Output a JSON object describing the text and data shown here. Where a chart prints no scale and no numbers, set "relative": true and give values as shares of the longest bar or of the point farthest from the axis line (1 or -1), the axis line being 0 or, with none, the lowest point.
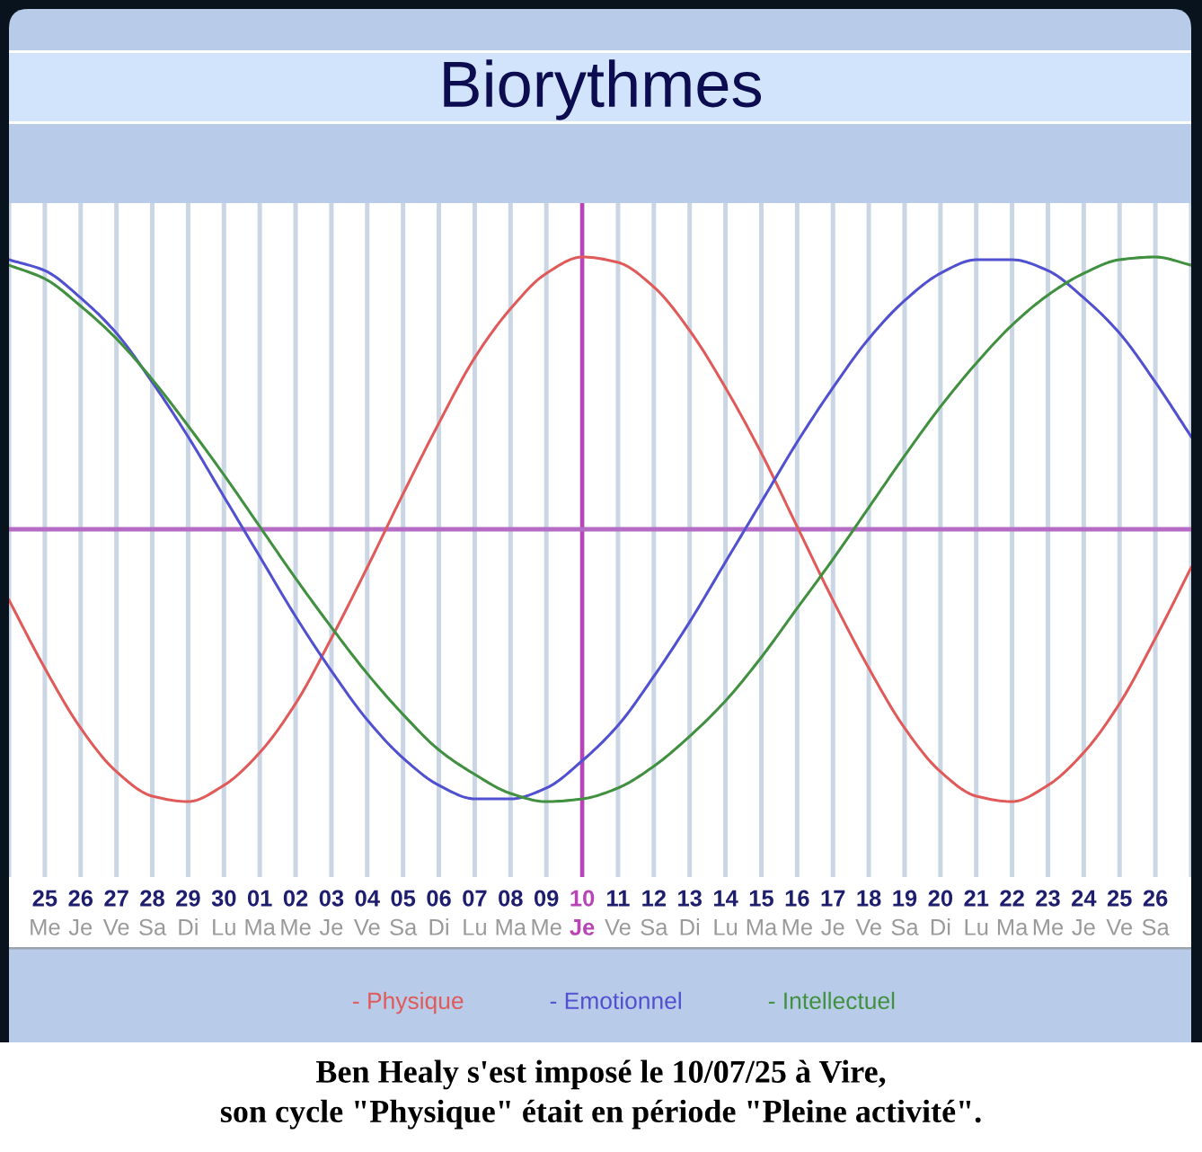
{
  "chart_data": {
    "type": "line",
    "title": "Biorythmes",
    "relative": true,
    "grid": "x",
    "legend": "bottom",
    "categories": [
      null,
      "25\nMe",
      "26\nJe",
      "27\nVe",
      "28\nSa",
      "29\nDi",
      "30\nLu",
      "01\nMa",
      "02\nMe",
      "03\nJe",
      "04\nVe",
      "05\nSa",
      "06\nDi",
      "07\nLu",
      "08\nMa",
      "09\nMe",
      "10\nJe",
      "11\nVe",
      "12\nSa",
      "13\nDi",
      "14\nLu",
      "15\nMa",
      "16\nMe",
      "17\nJe",
      "18\nVe",
      "19\nSa",
      "20\nDi",
      "21\nLu",
      "22\nMa",
      "23\nMe",
      "24\nJe",
      "25\nVe",
      "26\nSa",
      null
    ],
    "series": [
      {
        "name": "- Physique",
        "color": "#e05a5a",
        "values": [
          -0.26,
          -0.51,
          -0.73,
          -0.89,
          -0.98,
          -1.0,
          -0.94,
          -0.82,
          -0.64,
          -0.4,
          -0.14,
          0.13,
          0.39,
          0.63,
          0.81,
          0.94,
          1.0,
          0.98,
          0.89,
          0.73,
          0.52,
          0.28,
          0.01,
          -0.26,
          -0.51,
          -0.73,
          -0.89,
          -0.98,
          -1.0,
          -0.94,
          -0.82,
          -0.64,
          -0.4,
          -0.14
        ]
      },
      {
        "name": "- Emotionnel",
        "color": "#5050d0",
        "values": [
          0.99,
          0.95,
          0.85,
          0.72,
          0.54,
          0.34,
          0.12,
          -0.1,
          -0.32,
          -0.52,
          -0.7,
          -0.84,
          -0.94,
          -0.99,
          -0.99,
          -0.95,
          -0.85,
          -0.72,
          -0.54,
          -0.34,
          -0.12,
          0.1,
          0.32,
          0.52,
          0.7,
          0.84,
          0.94,
          0.99,
          0.99,
          0.95,
          0.85,
          0.72,
          0.54,
          0.34
        ]
      },
      {
        "name": "- Intellectuel",
        "color": "#409040",
        "values": [
          0.97,
          0.92,
          0.82,
          0.7,
          0.55,
          0.38,
          0.2,
          0.01,
          -0.18,
          -0.36,
          -0.53,
          -0.68,
          -0.81,
          -0.9,
          -0.97,
          -1.0,
          -0.99,
          -0.95,
          -0.87,
          -0.76,
          -0.63,
          -0.47,
          -0.29,
          -0.11,
          0.08,
          0.27,
          0.45,
          0.61,
          0.75,
          0.86,
          0.94,
          0.99,
          1.0,
          0.97
        ]
      }
    ],
    "ref_lines": [
      {
        "axis": "x",
        "value": "10\nJe",
        "color": "#b844b8"
      },
      {
        "axis": "y",
        "value": 0,
        "color": "#b46cc4"
      }
    ],
    "annotations": [
      "Ben Healy s'est imposé le 10/07/25 à Vire,\nson cycle \"Physique\" était en période \"Pleine activité\"."
    ]
  }
}
